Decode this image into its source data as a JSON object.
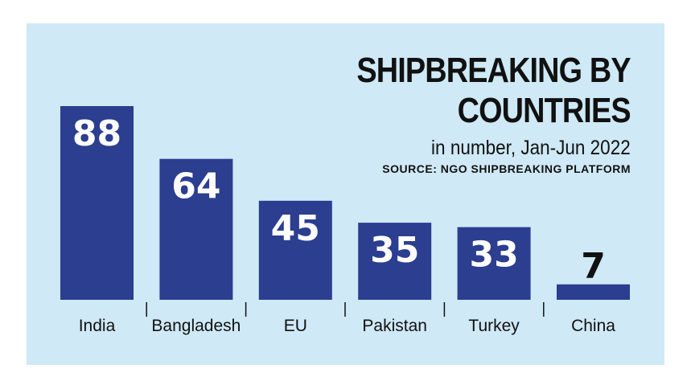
{
  "chart_data": {
    "type": "bar",
    "title": "SHIPBREAKING BY COUNTRIES",
    "title_lines": [
      "SHIPBREAKING BY",
      "COUNTRIES"
    ],
    "subtitle": "in number, Jan-Jun 2022",
    "source": "SOURCE: NGO SHIPBREAKING PLATFORM",
    "categories": [
      "India",
      "Bangladesh",
      "EU",
      "Pakistan",
      "Turkey",
      "China"
    ],
    "values": [
      88,
      64,
      45,
      35,
      33,
      7
    ],
    "xlabel": "",
    "ylabel": "",
    "ylim": [
      0,
      88
    ],
    "grid": false,
    "legend": "none",
    "data_labels": true
  },
  "colors": {
    "bar": "#2b3e8f",
    "background": "#cfe9f6",
    "label_inside": "#ffffff",
    "label_outside": "#111111",
    "text": "#111111"
  }
}
